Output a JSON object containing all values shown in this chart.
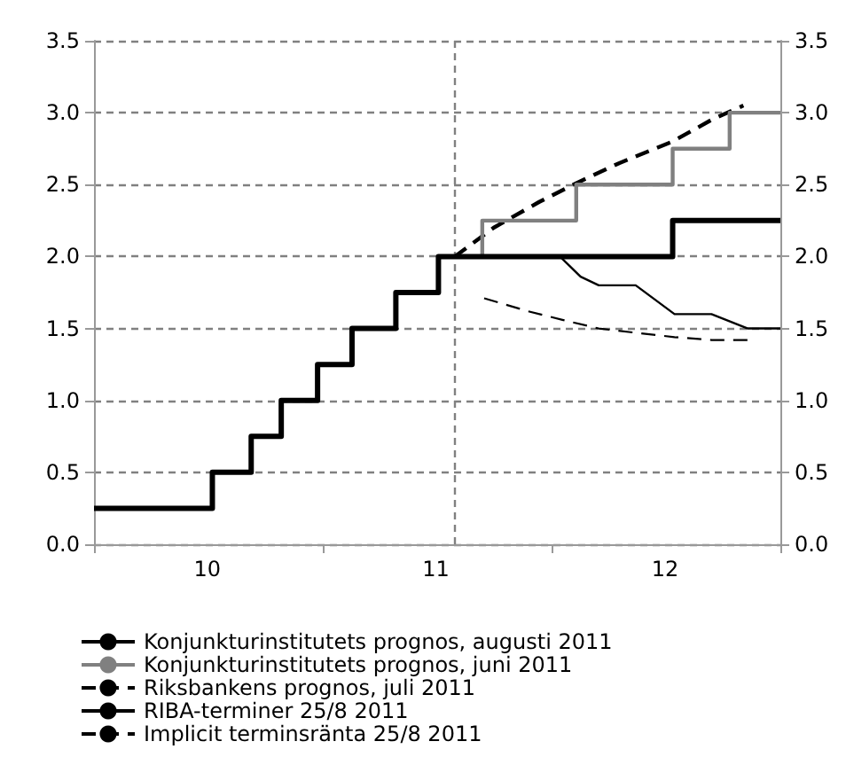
{
  "chart_data": {
    "type": "step",
    "xlim": [
      "2010-01-01",
      "2013-01-01"
    ],
    "xticks": [
      {
        "value": "2010-01-01",
        "label": null
      },
      {
        "value": "2010-07-01",
        "label": "10"
      },
      {
        "value": "2011-01-01",
        "label": null
      },
      {
        "value": "2011-07-01",
        "label": "11"
      },
      {
        "value": "2012-01-01",
        "label": null
      },
      {
        "value": "2012-07-01",
        "label": "12"
      },
      {
        "value": "2013-01-01",
        "label": null
      }
    ],
    "ylim": [
      0,
      3.5
    ],
    "yticks": [
      {
        "value": 0,
        "label": "0.0"
      },
      {
        "value": 0.5,
        "label": "0.5"
      },
      {
        "value": 1,
        "label": "1.0"
      },
      {
        "value": 1.5,
        "label": "1.5"
      },
      {
        "value": 2,
        "label": "2.0"
      },
      {
        "value": 2.5,
        "label": "2.5"
      },
      {
        "value": 3,
        "label": "3.0"
      },
      {
        "value": 3.5,
        "label": "3.5"
      }
    ],
    "y2lim": [
      0,
      3.5
    ],
    "y2ticks": [
      {
        "value": 0,
        "label": "0.0"
      },
      {
        "value": 0.5,
        "label": "0.5"
      },
      {
        "value": 1,
        "label": "1.0"
      },
      {
        "value": 1.5,
        "label": "1.5"
      },
      {
        "value": 2,
        "label": "2.0"
      },
      {
        "value": 2.5,
        "label": "2.5"
      },
      {
        "value": 3,
        "label": "3.0"
      },
      {
        "value": 3.5,
        "label": "3.5"
      }
    ],
    "grid": "y",
    "legend": "bottom",
    "ref_lines": [
      {
        "axis": "x",
        "value": "2011-07-31",
        "label": null,
        "color": "#808080",
        "line_style": "dashed"
      }
    ],
    "series": [
      {
        "name": "Konjunkturinstitutets prognos, augusti 2011",
        "color": "#000000",
        "line_style": "solid",
        "x": [
          "2010-01-01",
          "2010-07-09",
          "2010-09-09",
          "2010-10-27",
          "2010-12-24",
          "2011-02-17",
          "2011-04-28",
          "2011-07-05",
          "2012-07-13",
          "2013-01-01"
        ],
        "values": [
          0.25,
          0.5,
          0.75,
          1.0,
          1.25,
          1.5,
          1.75,
          2.0,
          2.25,
          2.25
        ]
      },
      {
        "name": "Konjunkturinstitutets prognos, juni 2011",
        "color": "#808080",
        "line_style": "solid",
        "x": [
          "2011-07-31",
          "2011-09-13",
          "2012-02-10",
          "2012-07-13",
          "2012-10-12",
          "2013-01-01"
        ],
        "values": [
          2.0,
          2.25,
          2.5,
          2.75,
          3.0,
          3.0
        ]
      },
      {
        "name": "Riksbankens prognos, juli 2011",
        "type": "line",
        "color": "#000000",
        "line_style": "dashed",
        "x": [
          "2011-07-31",
          "2011-10-01",
          "2011-12-13",
          "2012-02-10",
          "2012-04-19",
          "2012-07-13",
          "2012-09-13",
          "2012-11-03"
        ],
        "values": [
          2.0,
          2.2,
          2.38,
          2.51,
          2.65,
          2.8,
          2.95,
          3.05
        ]
      },
      {
        "name": "RIBA-terminer 25/8 2011",
        "type": "line",
        "color": "#000000",
        "line_style": "solid",
        "x": [
          "2012-01-15",
          "2012-02-17",
          "2012-03-17",
          "2012-05-15",
          "2012-07-16",
          "2012-09-13",
          "2012-11-10",
          "2013-01-01"
        ],
        "values": [
          2.0,
          1.86,
          1.8,
          1.8,
          1.6,
          1.6,
          1.5,
          1.5
        ]
      },
      {
        "name": "Implicit terminsränta 25/8 2011",
        "type": "line",
        "color": "#000000",
        "line_style": "dashed",
        "x": [
          "2011-09-16",
          "2011-11-25",
          "2012-01-19",
          "2012-03-17",
          "2012-05-15",
          "2012-07-16",
          "2012-09-13",
          "2012-11-18"
        ],
        "values": [
          1.71,
          1.62,
          1.56,
          1.5,
          1.47,
          1.44,
          1.42,
          1.42
        ]
      }
    ]
  }
}
